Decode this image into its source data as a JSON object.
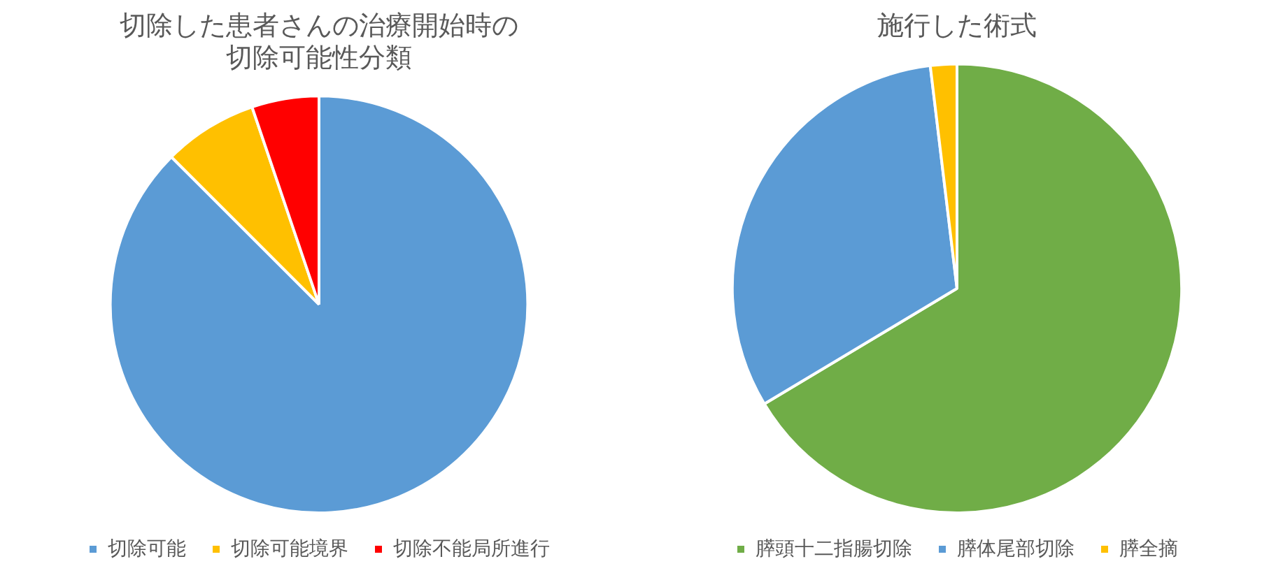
{
  "chart_data": [
    {
      "type": "pie",
      "title": "切除した患者さんの治療開始時の切除可能性分類",
      "categories": [
        "切除可能",
        "切除可能境界",
        "切除不能局所進行"
      ],
      "values": [
        87.5,
        7.3,
        5.2
      ],
      "colors": [
        "#5b9bd5",
        "#ffc000",
        "#ff0000"
      ],
      "legend": "bottom"
    },
    {
      "type": "pie",
      "title": "施行した術式",
      "categories": [
        "膵頭十二指腸切除",
        "膵体尾部切除",
        "膵全摘"
      ],
      "values": [
        66.4,
        31.7,
        1.9
      ],
      "colors": [
        "#70ad47",
        "#5b9bd5",
        "#ffc000"
      ],
      "legend": "bottom"
    }
  ]
}
